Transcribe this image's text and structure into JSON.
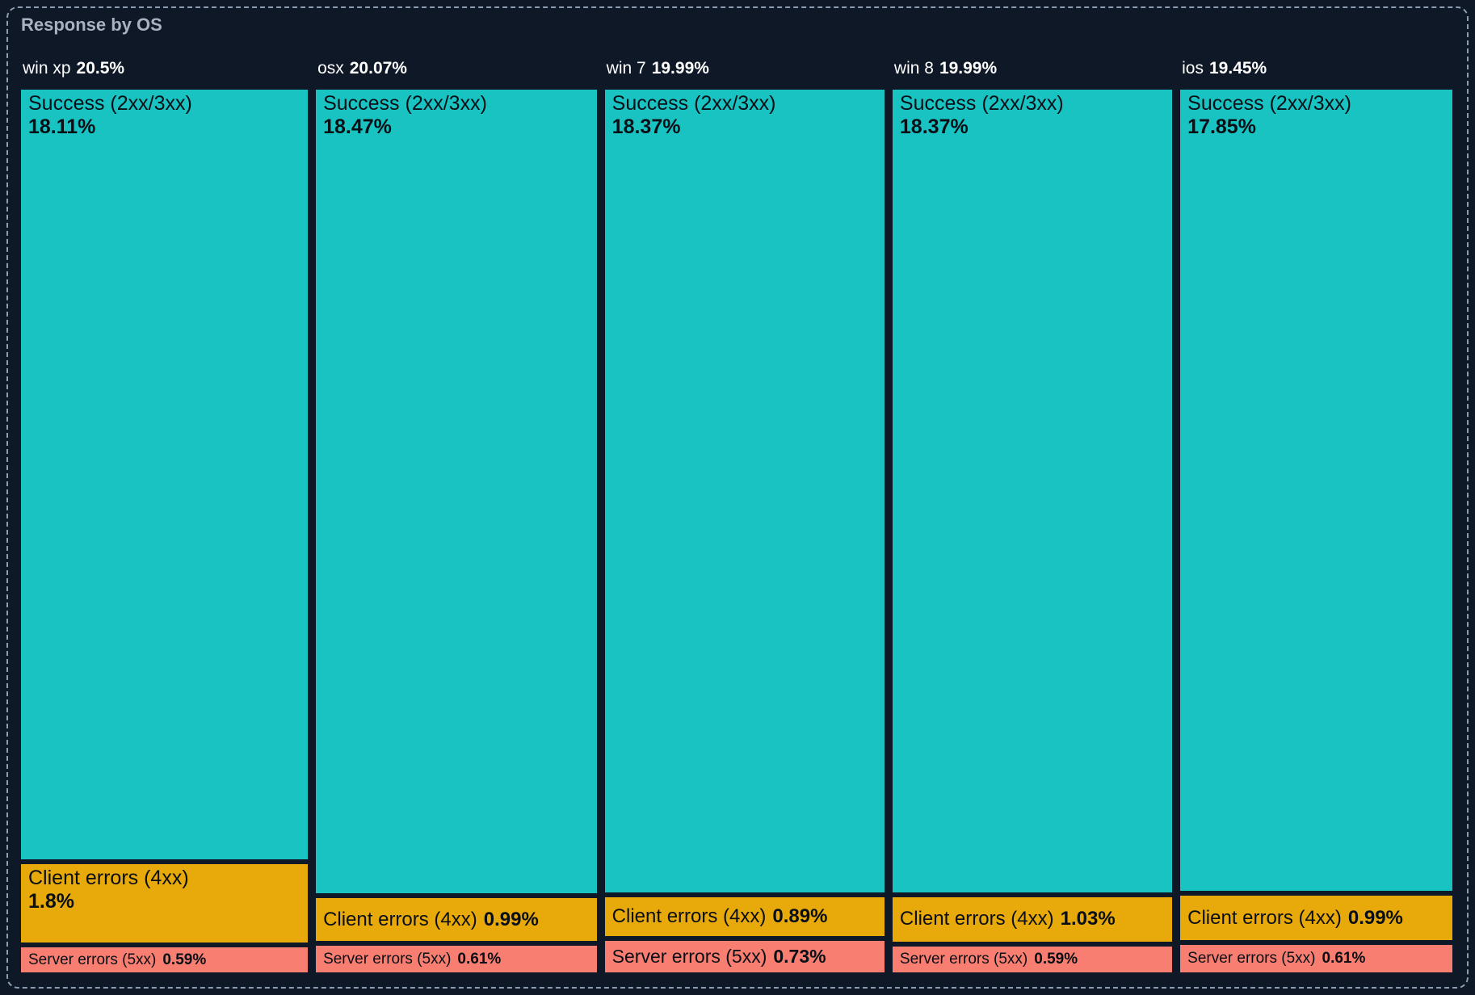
{
  "card": {
    "title": "Response by OS",
    "background_color": "#0e1826",
    "border_color": "#8e9cb2",
    "title_color": "#a8b2c3"
  },
  "chart_data": {
    "type": "mosaic-treemap",
    "title": "Response by OS",
    "unit": "%",
    "orientation": "columns-by-os-with-stacked-response-classes",
    "series_colors": {
      "success": "#18c3c2",
      "client_errors": "#e8a90b",
      "server_errors": "#f87e71"
    },
    "label_text_color": "#0a0f16",
    "header_text_color": "#ffffff",
    "columns": [
      {
        "name": "win xp",
        "total": 20.5,
        "total_label": "20.5%",
        "segments": [
          {
            "key": "success",
            "label": "Success (2xx/3xx)",
            "value": 18.11,
            "value_label": "18.11%"
          },
          {
            "key": "client_errors",
            "label": "Client errors (4xx)",
            "value": 1.8,
            "value_label": "1.8%"
          },
          {
            "key": "server_errors",
            "label": "Server errors (5xx)",
            "value": 0.59,
            "value_label": "0.59%"
          }
        ]
      },
      {
        "name": "osx",
        "total": 20.07,
        "total_label": "20.07%",
        "segments": [
          {
            "key": "success",
            "label": "Success (2xx/3xx)",
            "value": 18.47,
            "value_label": "18.47%"
          },
          {
            "key": "client_errors",
            "label": "Client errors (4xx)",
            "value": 0.99,
            "value_label": "0.99%"
          },
          {
            "key": "server_errors",
            "label": "Server errors (5xx)",
            "value": 0.61,
            "value_label": "0.61%"
          }
        ]
      },
      {
        "name": "win 7",
        "total": 19.99,
        "total_label": "19.99%",
        "segments": [
          {
            "key": "success",
            "label": "Success (2xx/3xx)",
            "value": 18.37,
            "value_label": "18.37%"
          },
          {
            "key": "client_errors",
            "label": "Client errors (4xx)",
            "value": 0.89,
            "value_label": "0.89%"
          },
          {
            "key": "server_errors",
            "label": "Server errors (5xx)",
            "value": 0.73,
            "value_label": "0.73%"
          }
        ]
      },
      {
        "name": "win 8",
        "total": 19.99,
        "total_label": "19.99%",
        "segments": [
          {
            "key": "success",
            "label": "Success (2xx/3xx)",
            "value": 18.37,
            "value_label": "18.37%"
          },
          {
            "key": "client_errors",
            "label": "Client errors (4xx)",
            "value": 1.03,
            "value_label": "1.03%"
          },
          {
            "key": "server_errors",
            "label": "Server errors (5xx)",
            "value": 0.59,
            "value_label": "0.59%"
          }
        ]
      },
      {
        "name": "ios",
        "total": 19.45,
        "total_label": "19.45%",
        "segments": [
          {
            "key": "success",
            "label": "Success (2xx/3xx)",
            "value": 17.85,
            "value_label": "17.85%"
          },
          {
            "key": "client_errors",
            "label": "Client errors (4xx)",
            "value": 0.99,
            "value_label": "0.99%"
          },
          {
            "key": "server_errors",
            "label": "Server errors (5xx)",
            "value": 0.61,
            "value_label": "0.61%"
          }
        ]
      }
    ]
  }
}
